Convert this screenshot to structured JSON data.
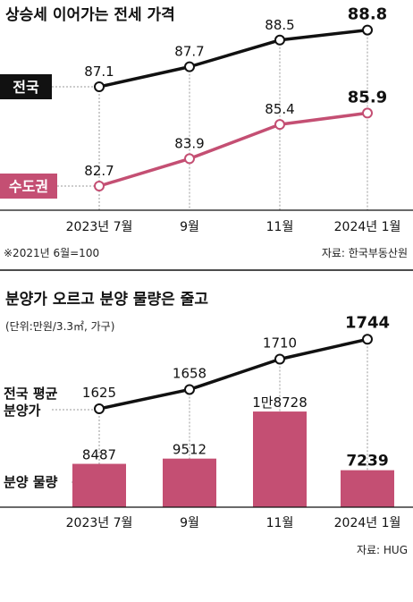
{
  "chart1": {
    "title": "상승세 이어가는 전세 가격",
    "note": "※2021년 6월=100",
    "source": "자료: 한국부동산원"
  },
  "chart2": {
    "title": "분양가 오르고 분양 물량은 줄고",
    "unit": "(단위:만원/3.3㎡, 가구)",
    "source": "자료: HUG"
  },
  "colors": {
    "national": "#111111",
    "capital": "#c44f73",
    "bar": "#c44f73",
    "grid": "#999999"
  },
  "chart_data": [
    {
      "type": "line",
      "title": "상승세 이어가는 전세 가격",
      "categories": [
        "2023년 7월",
        "9월",
        "11월",
        "2024년 1월"
      ],
      "series": [
        {
          "name": "전국",
          "values": [
            87.1,
            87.7,
            88.5,
            88.8
          ],
          "labels": [
            "87.1",
            "87.7",
            "88.5",
            "88.8"
          ]
        },
        {
          "name": "수도권",
          "values": [
            82.7,
            83.9,
            85.4,
            85.9
          ],
          "labels": [
            "82.7",
            "83.9",
            "85.4",
            "85.9"
          ]
        }
      ],
      "annotations": [
        "※2021년 6월=100"
      ]
    },
    {
      "type": "bar+line",
      "title": "분양가 오르고 분양 물량은 줄고",
      "subtitle": "(단위:만원/3.3㎡, 가구)",
      "categories": [
        "2023년 7월",
        "9월",
        "11월",
        "2024년 1월"
      ],
      "series": [
        {
          "name": "전국 평균 분양가",
          "type": "line",
          "values": [
            1625,
            1658,
            1710,
            1744
          ],
          "labels": [
            "1625",
            "1658",
            "1710",
            "1744"
          ]
        },
        {
          "name": "분양 물량",
          "type": "bar",
          "values": [
            8487,
            9512,
            18728,
            7239
          ],
          "labels": [
            "8487",
            "9512",
            "1만8728",
            "7239"
          ]
        }
      ]
    }
  ]
}
